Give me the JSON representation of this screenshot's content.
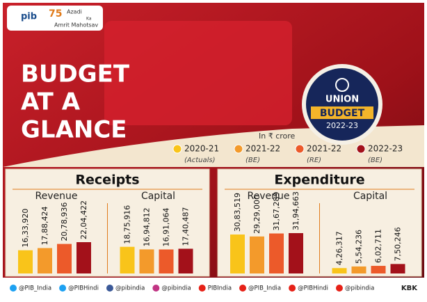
{
  "header": {
    "logo": "pib",
    "anniversary": "75",
    "campaign": [
      "Azadi",
      "Ka",
      "Amrit Mahotsav"
    ]
  },
  "title": [
    "BUDGET",
    "AT A",
    "GLANCE"
  ],
  "badge": {
    "line1": "UNION",
    "line2": "BUDGET",
    "line3": "2022-23"
  },
  "unit": "In ₹ crore",
  "legend": [
    {
      "label": "2020-21",
      "note": "(Actuals)",
      "color": "#f9c41a"
    },
    {
      "label": "2021-22",
      "note": "(BE)",
      "color": "#f39a2b"
    },
    {
      "label": "2021-22",
      "note": "(RE)",
      "color": "#ec5a2a"
    },
    {
      "label": "2022-23",
      "note": "(BE)",
      "color": "#a3111a"
    }
  ],
  "panels": [
    {
      "title": "Receipts",
      "groups": [
        {
          "name": "Revenue",
          "values": [
            1633920,
            1788424,
            2078936,
            2204422
          ],
          "value_labels": [
            "16,33,920",
            "17,88,424",
            "20,78,936",
            "22,04,422"
          ]
        },
        {
          "name": "Capital",
          "values": [
            1875916,
            1694812,
            1691064,
            1740487
          ],
          "value_labels": [
            "18,75,916",
            "16,94,812",
            "16,91,064",
            "17,40,487"
          ]
        }
      ]
    },
    {
      "title": "Expenditure",
      "groups": [
        {
          "name": "Revenue",
          "values": [
            3083519,
            2929000,
            3167289,
            3194663
          ],
          "value_labels": [
            "30,83,519",
            "29,29,000",
            "31,67,289",
            "31,94,663"
          ]
        },
        {
          "name": "Capital",
          "values": [
            426317,
            554236,
            602711,
            750246
          ],
          "value_labels": [
            "4,26,317",
            "5,54,236",
            "6,02,711",
            "7,50,246"
          ]
        }
      ]
    }
  ],
  "footer": {
    "handles": [
      {
        "text": "@PIB_India",
        "color": "#1da1f2"
      },
      {
        "text": "@PIBHindi",
        "color": "#1da1f2"
      },
      {
        "text": "@pibindia",
        "color": "#3b5998"
      },
      {
        "text": "@pibindia",
        "color": "#c13584"
      },
      {
        "text": "PIBIndia",
        "color": "#e62117"
      },
      {
        "text": "@PIB_India",
        "color": "#e62117"
      },
      {
        "text": "@PIBHindi",
        "color": "#e62117"
      },
      {
        "text": "@pibindia",
        "color": "#e62117"
      }
    ],
    "credit": "KBK"
  }
}
